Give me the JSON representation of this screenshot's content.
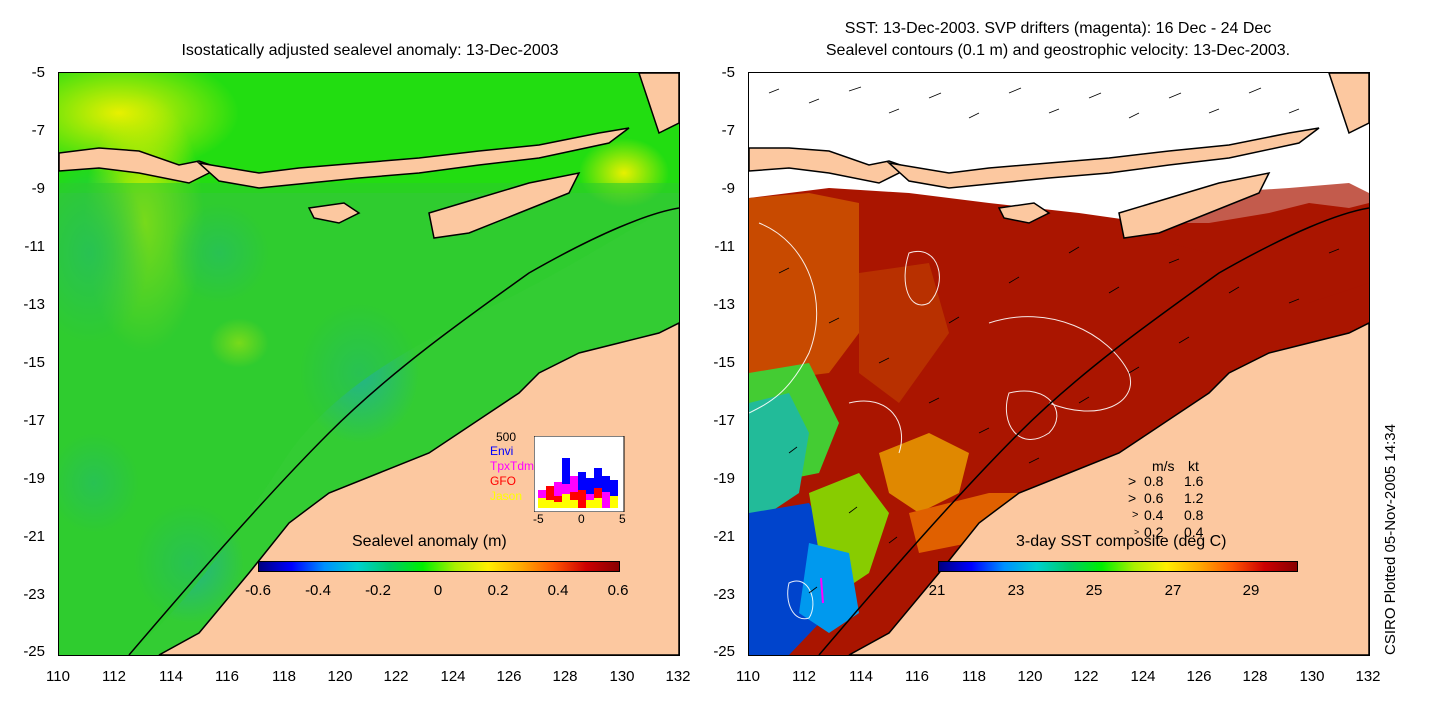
{
  "left": {
    "title": "Isostatically adjusted sealevel anomaly: 13-Dec-2003",
    "colorbar_label": "Sealevel anomaly (m)",
    "colorbar_ticks": [
      "-0.6",
      "-0.4",
      "-0.2",
      "0",
      "0.2",
      "0.4",
      "0.6"
    ],
    "inset": {
      "top_value": "500",
      "series": [
        {
          "name": "Envi",
          "color": "#0000ff"
        },
        {
          "name": "TpxTdm",
          "color": "#ff00ff"
        },
        {
          "name": "GFO",
          "color": "#ff0000"
        },
        {
          "name": "Jason",
          "color": "#ffff00"
        }
      ],
      "x_ticks": [
        "-5",
        "0",
        "5"
      ]
    }
  },
  "right": {
    "title_line1": "SST: 13-Dec-2003. SVP drifters (magenta): 16 Dec - 24 Dec",
    "title_line2": "Sealevel contours (0.1 m) and geostrophic velocity: 13-Dec-2003.",
    "colorbar_label": "3-day SST composite (deg C)",
    "colorbar_ticks": [
      "21",
      "23",
      "25",
      "27",
      "29"
    ],
    "velocity_legend": {
      "header_ms": "m/s",
      "header_kt": "kt",
      "rows": [
        {
          "ms": "0.8",
          "kt": "1.6"
        },
        {
          "ms": "0.6",
          "kt": "1.2"
        },
        {
          "ms": "0.4",
          "kt": "0.8"
        },
        {
          "ms": "0.2",
          "kt": "0.4"
        }
      ]
    }
  },
  "axes": {
    "y_ticks": [
      "-5",
      "-7",
      "-9",
      "-11",
      "-13",
      "-15",
      "-17",
      "-19",
      "-21",
      "-23",
      "-25"
    ],
    "x_ticks": [
      "110",
      "112",
      "114",
      "116",
      "118",
      "120",
      "122",
      "124",
      "126",
      "128",
      "130",
      "132"
    ]
  },
  "credit": "CSIRO Plotted 05-Nov-2005 14:34",
  "colors": {
    "land": "#fcc8a0",
    "ocean_left": "#22dd22",
    "sst_hot": "#aa1500",
    "sst_warm": "#d86a00"
  }
}
